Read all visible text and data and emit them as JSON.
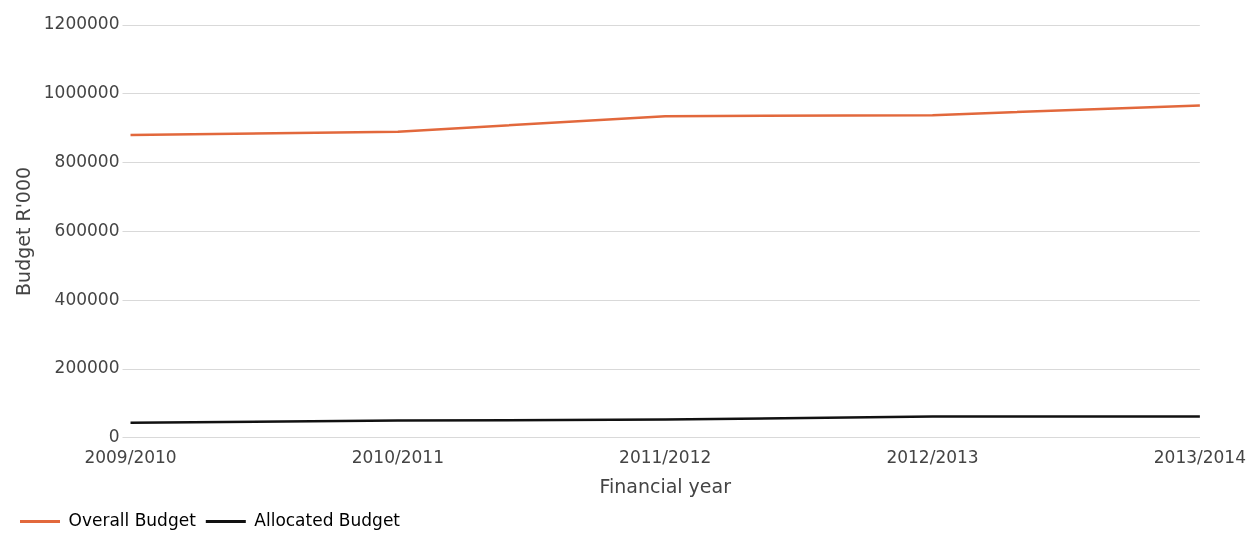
{
  "chart_data": {
    "type": "line",
    "xlabel": "Financial year",
    "ylabel": "Budget R'000",
    "categories": [
      "2009/2010",
      "2010/2011",
      "2011/2012",
      "2012/2013",
      "2013/2014"
    ],
    "series": [
      {
        "name": "Overall Budget",
        "color": "#e2683c",
        "values": [
          880000,
          890000,
          935000,
          938000,
          966000
        ]
      },
      {
        "name": "Allocated Budget",
        "color": "#111111",
        "values": [
          44000,
          50000,
          53000,
          62000,
          62000
        ]
      }
    ],
    "ylim": [
      0,
      1200000
    ],
    "yticks": [
      0,
      200000,
      400000,
      600000,
      800000,
      1000000,
      1200000
    ],
    "grid": "y",
    "legend": "bottom left",
    "marker": "none",
    "line_style": "solid"
  }
}
